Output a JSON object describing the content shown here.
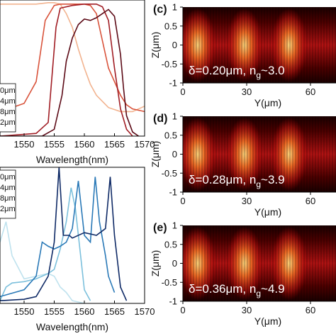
{
  "chart_data": [
    {
      "type": "line",
      "panel": "top-left",
      "xlabel": "Wavelength(nm)",
      "ylabel": "",
      "xlim": [
        1546,
        1570
      ],
      "ylim": [
        0,
        1
      ],
      "x_ticks": [
        "1550",
        "1555",
        "1560",
        "1565",
        "1570"
      ],
      "legend_entries": [
        "0μm",
        "4μm",
        "8μm",
        "2μm"
      ],
      "legend_placement": "left",
      "series": [
        {
          "color": "#f2b38f",
          "x": [
            1546,
            1548,
            1550,
            1552,
            1554,
            1555,
            1556,
            1557,
            1558,
            1559,
            1560,
            1561,
            1562,
            1564,
            1566,
            1568,
            1570
          ],
          "y": [
            0.97,
            0.97,
            0.97,
            0.97,
            0.98,
            0.98,
            0.97,
            0.9,
            0.8,
            0.64,
            0.5,
            0.38,
            0.3,
            0.21,
            0.18,
            0.18,
            0.22
          ]
        },
        {
          "color": "#d9533b",
          "x": [
            1546,
            1548,
            1550,
            1552,
            1553.5,
            1555,
            1556,
            1557,
            1558,
            1559,
            1560,
            1561,
            1562,
            1563,
            1564,
            1566,
            1567,
            1568,
            1570
          ],
          "y": [
            0.2,
            0.21,
            0.24,
            0.4,
            0.85,
            0.96,
            0.97,
            0.97,
            0.97,
            0.97,
            0.97,
            0.96,
            0.9,
            0.7,
            0.5,
            0.3,
            0.23,
            0.2,
            0.18
          ]
        },
        {
          "color": "#a11d24",
          "x": [
            1546,
            1552,
            1554,
            1555.3,
            1556,
            1558,
            1560,
            1562,
            1563,
            1564,
            1565,
            1566,
            1567,
            1568
          ],
          "y": [
            0.0,
            0.02,
            0.1,
            0.8,
            0.94,
            0.96,
            0.97,
            0.97,
            0.95,
            0.85,
            0.5,
            0.2,
            0.05,
            0.0
          ]
        },
        {
          "color": "#5c0a16",
          "x": [
            1546,
            1553,
            1555,
            1556.3,
            1557,
            1558,
            1559,
            1560,
            1561,
            1562,
            1563,
            1564,
            1565,
            1566,
            1566.5,
            1567,
            1568,
            1569
          ],
          "y": [
            0.0,
            0.0,
            0.05,
            0.3,
            0.55,
            0.72,
            0.82,
            0.86,
            0.85,
            0.87,
            0.9,
            0.93,
            0.88,
            0.6,
            0.35,
            0.15,
            0.03,
            0.0
          ]
        }
      ]
    },
    {
      "type": "line",
      "panel": "bottom-left",
      "xlabel": "Wavelength(nm)",
      "ylabel": "",
      "xlim": [
        1546,
        1570
      ],
      "ylim": [
        0,
        1
      ],
      "x_ticks": [
        "1550",
        "1555",
        "1560",
        "1565",
        "1570"
      ],
      "legend_entries": [
        "0μm",
        "4μm",
        "8μm",
        "2μm"
      ],
      "legend_placement": "top-left",
      "series": [
        {
          "color": "#bfe2ee",
          "x": [
            1546,
            1547,
            1548,
            1550,
            1552,
            1554,
            1555,
            1556,
            1557,
            1558,
            1560
          ],
          "y": [
            0.45,
            0.6,
            0.35,
            0.18,
            0.2,
            0.22,
            0.2,
            0.12,
            0.08,
            0.02,
            0.0
          ]
        },
        {
          "color": "#7cc0dc",
          "x": [
            1546,
            1547,
            1548,
            1550,
            1552,
            1554,
            1555,
            1556,
            1557,
            1557.8,
            1558.5,
            1559.5,
            1560,
            1561
          ],
          "y": [
            0.02,
            0.12,
            0.15,
            0.16,
            0.18,
            0.22,
            0.25,
            0.4,
            0.6,
            0.85,
            0.7,
            0.3,
            0.1,
            0.02
          ]
        },
        {
          "color": "#2a79b7",
          "x": [
            1546,
            1550,
            1552,
            1553,
            1554,
            1555,
            1556,
            1557,
            1558,
            1559,
            1560,
            1561,
            1561.8,
            1562.5,
            1563.5,
            1564,
            1565
          ],
          "y": [
            0.05,
            0.1,
            0.2,
            0.45,
            0.42,
            0.4,
            0.42,
            0.45,
            0.55,
            0.9,
            0.5,
            0.45,
            0.93,
            0.6,
            0.35,
            0.2,
            0.08
          ]
        },
        {
          "color": "#0f2a66",
          "x": [
            1546,
            1550,
            1552,
            1554,
            1555,
            1555.8,
            1556.5,
            1557.5,
            1558,
            1560,
            1562,
            1563.5,
            1564.3,
            1565,
            1566,
            1567
          ],
          "y": [
            0.02,
            0.03,
            0.05,
            0.2,
            0.45,
            1.0,
            0.5,
            0.5,
            0.48,
            0.52,
            0.5,
            0.55,
            0.93,
            0.5,
            0.12,
            0.02
          ]
        }
      ]
    },
    {
      "type": "heatmap",
      "panel": "c",
      "label": "(c)",
      "annotation": "δ=0.20μm, n",
      "annotation_sub": "g",
      "annotation_tail": "~3.0",
      "xlabel": "Y(μm)",
      "ylabel": "Z(μm)",
      "xlim": [
        0,
        72
      ],
      "ylim": [
        -1,
        1
      ],
      "x_ticks": [
        "0",
        "30",
        "60"
      ],
      "y_ticks": [
        "1",
        "0.5",
        "0",
        "-0.5",
        "-1"
      ],
      "field_maxima_y": [
        7,
        29,
        50
      ],
      "colormap": [
        "#120000",
        "#5a0000",
        "#b01010",
        "#e8501a",
        "#f7c05a"
      ]
    },
    {
      "type": "heatmap",
      "panel": "d",
      "label": "(d)",
      "annotation": "δ=0.28μm, n",
      "annotation_sub": "g",
      "annotation_tail": "~3.9",
      "xlabel": "Y(μm)",
      "ylabel": "Z(μm)",
      "xlim": [
        0,
        72
      ],
      "ylim": [
        -1,
        1
      ],
      "x_ticks": [
        "0",
        "30",
        "60"
      ],
      "y_ticks": [
        "1",
        "0.5",
        "0",
        "-0.5",
        "-1"
      ],
      "field_maxima_y": [
        7,
        29,
        50
      ],
      "colormap": [
        "#120000",
        "#5a0000",
        "#b01010",
        "#e8501a",
        "#f7c05a"
      ]
    },
    {
      "type": "heatmap",
      "panel": "e",
      "label": "(e)",
      "annotation": "δ=0.36μm, n",
      "annotation_sub": "g",
      "annotation_tail": "~4.9",
      "xlabel": "Y(μm)",
      "ylabel": "Z(μm)",
      "xlim": [
        0,
        72
      ],
      "ylim": [
        -1,
        1
      ],
      "x_ticks": [
        "0",
        "30",
        "60"
      ],
      "y_ticks": [
        "1",
        "0.5",
        "0",
        "-0.5",
        "-1"
      ],
      "field_maxima_y": [
        7,
        29,
        50
      ],
      "colormap": [
        "#120000",
        "#5a0000",
        "#b01010",
        "#e8501a",
        "#f7c05a"
      ]
    }
  ]
}
